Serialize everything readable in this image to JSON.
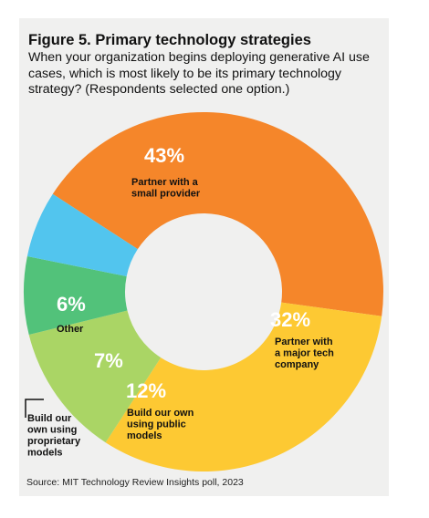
{
  "figure": {
    "title": "Figure 5. Primary technology strategies",
    "subtitle": "When your organization begins deploying generative AI use cases, which is most likely to be its primary technology strategy? (Respondents selected one option.)",
    "source": "Source: MIT Technology Review Insights poll, 2023"
  },
  "chart_data": {
    "type": "pie",
    "donut": true,
    "title": "Figure 5. Primary technology strategies",
    "subtitle": "When your organization begins deploying generative AI use cases, which is most likely to be its primary technology strategy? (Respondents selected one option.)",
    "unit": "%",
    "slices": [
      {
        "label_lines": [
          "Partner with a",
          "small provider"
        ],
        "value": 43,
        "value_label": "43%",
        "color": "#f5862a"
      },
      {
        "label_lines": [
          "Partner with",
          "a major tech",
          "company"
        ],
        "value": 32,
        "value_label": "32%",
        "color": "#fdc933"
      },
      {
        "label_lines": [
          "Build our own",
          "using public",
          "models"
        ],
        "value": 12,
        "value_label": "12%",
        "color": "#aad565"
      },
      {
        "label_lines": [
          "Build our",
          "own using",
          "proprietary",
          "models"
        ],
        "value": 7,
        "value_label": "7%",
        "color": "#52c27a"
      },
      {
        "label_lines": [
          "Other"
        ],
        "value": 6,
        "value_label": "6%",
        "color": "#52c5ee"
      }
    ]
  }
}
